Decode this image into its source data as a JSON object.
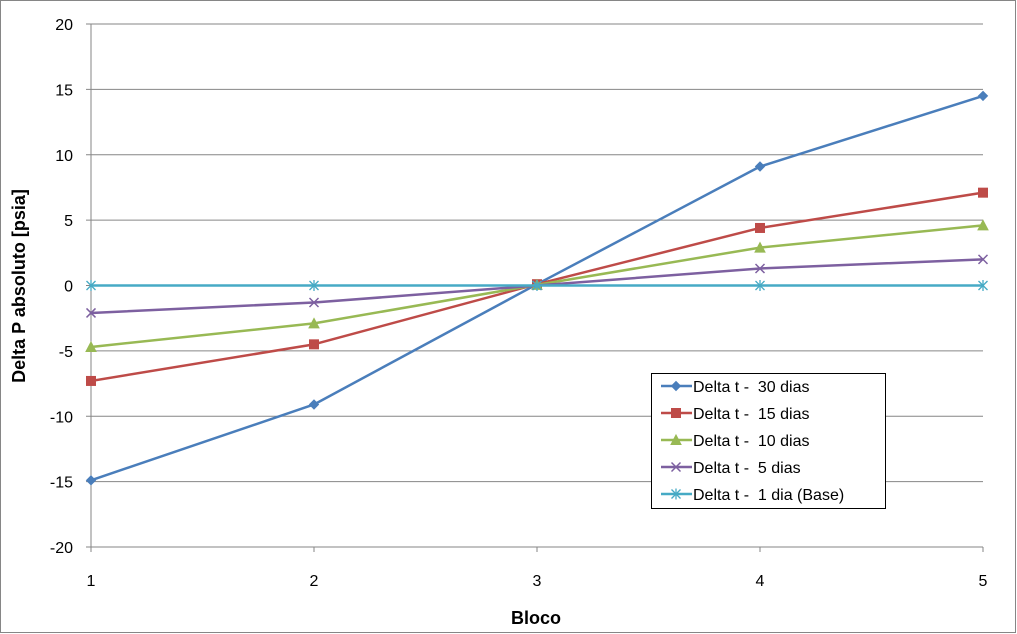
{
  "chart_data": {
    "type": "line",
    "title": "",
    "xlabel": "Bloco",
    "ylabel": "Delta P absoluto [psia]",
    "x": [
      1,
      2,
      3,
      4,
      5
    ],
    "xlim": [
      1,
      5
    ],
    "ylim": [
      -20,
      20
    ],
    "y_ticks": [
      20,
      15,
      10,
      5,
      0,
      -5,
      -10,
      -15,
      -20
    ],
    "x_ticks": [
      1,
      2,
      3,
      4,
      5
    ],
    "grid": "horizontal",
    "legend_position": "bottom-right",
    "series": [
      {
        "name": "Delta t -  30 dias",
        "values": [
          -14.9,
          -9.1,
          0.1,
          9.1,
          14.5
        ],
        "color": "#4a7ebb",
        "marker": "diamond"
      },
      {
        "name": "Delta t -  15 dias",
        "values": [
          -7.3,
          -4.5,
          0.1,
          4.4,
          7.1
        ],
        "color": "#be4b48",
        "marker": "square"
      },
      {
        "name": "Delta t -  10 dias",
        "values": [
          -4.7,
          -2.9,
          0.05,
          2.9,
          4.6
        ],
        "color": "#98b954",
        "marker": "triangle"
      },
      {
        "name": "Delta t -  5 dias",
        "values": [
          -2.1,
          -1.3,
          0.0,
          1.3,
          2.0
        ],
        "color": "#7d60a0",
        "marker": "x"
      },
      {
        "name": "Delta t -  1 dia (Base)",
        "values": [
          0,
          0,
          0,
          0,
          0
        ],
        "color": "#46aac5",
        "marker": "star"
      }
    ]
  }
}
